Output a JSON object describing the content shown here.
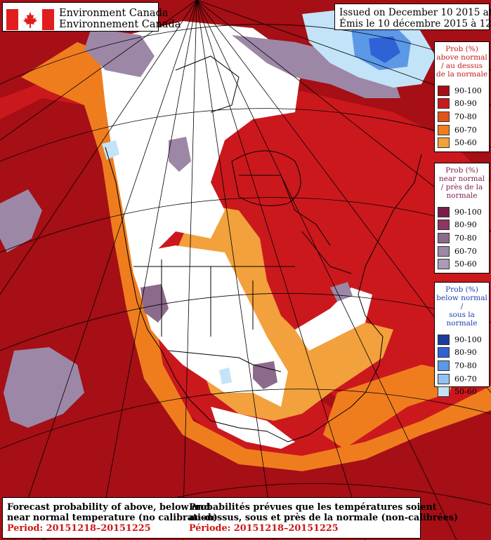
{
  "header": {
    "agency_en": "Environment Canada",
    "agency_fr": "Environnement Canada",
    "issued_en": "Issued on December 10 2015 at 12Z",
    "issued_fr": "Émis le 10 décembre 2015 à 12Z"
  },
  "legends": [
    {
      "title_lines": [
        "Prob (%)",
        "above normal",
        "/ au dessus",
        "de la normale"
      ],
      "items": [
        {
          "label": "90-100",
          "color": "#a50f15"
        },
        {
          "label": "80-90",
          "color": "#cb181d"
        },
        {
          "label": "70-80",
          "color": "#e2531a"
        },
        {
          "label": "60-70",
          "color": "#ef7d1e"
        },
        {
          "label": "50-60",
          "color": "#f2a13c"
        }
      ]
    },
    {
      "title_lines": [
        "Prob (%)",
        "near normal",
        "/ près de la",
        "normale"
      ],
      "items": [
        {
          "label": "90-100",
          "color": "#7a1d4d"
        },
        {
          "label": "80-90",
          "color": "#8e3563"
        },
        {
          "label": "70-80",
          "color": "#8c6a8c"
        },
        {
          "label": "60-70",
          "color": "#9c87a6"
        },
        {
          "label": "50-60",
          "color": "#ab9bb8"
        }
      ]
    },
    {
      "title_lines": [
        "Prob (%)",
        "below normal /",
        "sous la normale"
      ],
      "items": [
        {
          "label": "90-100",
          "color": "#1a3a9e"
        },
        {
          "label": "80-90",
          "color": "#2f62d4"
        },
        {
          "label": "70-80",
          "color": "#5b98e6"
        },
        {
          "label": "60-70",
          "color": "#8fc2f0"
        },
        {
          "label": "50-60",
          "color": "#c3e3f8"
        }
      ]
    }
  ],
  "footer": {
    "en_line1": "Forecast probability of above, below and",
    "en_line2": "near normal temperature (no calibration)",
    "en_period": "Period: 20151218–20151225",
    "fr_line1": "Probabilités prévues que les températures soient",
    "fr_line2": "au-dessus, sous et près de la normale (non-calibrées)",
    "fr_period": "Période: 20151218–20151225"
  }
}
